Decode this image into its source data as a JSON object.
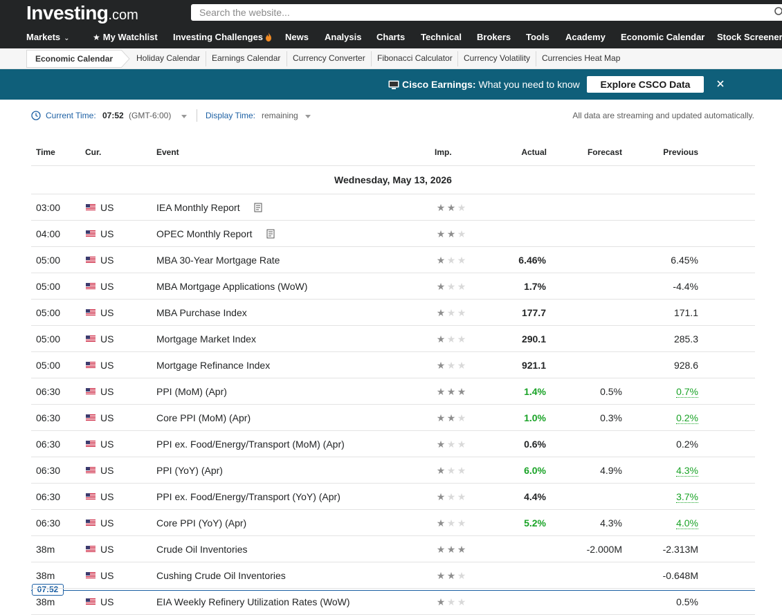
{
  "header": {
    "logo_main": "Investing",
    "logo_suffix": ".com",
    "search_placeholder": "Search the website...",
    "nav": [
      {
        "label": "Markets"
      },
      {
        "label": "My Watchlist"
      },
      {
        "label": "Investing Challenges"
      },
      {
        "label": "News"
      },
      {
        "label": "Analysis"
      },
      {
        "label": "Charts"
      },
      {
        "label": "Technical"
      },
      {
        "label": "Brokers"
      },
      {
        "label": "Tools"
      },
      {
        "label": "Academy"
      },
      {
        "label": "Economic Calendar"
      },
      {
        "label": "Stock Screener"
      }
    ]
  },
  "subnav": [
    {
      "label": "Economic Calendar"
    },
    {
      "label": "Holiday Calendar"
    },
    {
      "label": "Earnings Calendar"
    },
    {
      "label": "Currency Converter"
    },
    {
      "label": "Fibonacci Calculator"
    },
    {
      "label": "Currency Volatility"
    },
    {
      "label": "Currencies Heat Map"
    }
  ],
  "banner": {
    "title": "Cisco Earnings:",
    "text": " What you need to know",
    "button": "Explore CSCO Data"
  },
  "status": {
    "current_time_label": "Current Time:",
    "current_time": "07:52",
    "gmt": "(GMT-6:00)",
    "display_time_label": "Display Time:",
    "display_time": "remaining",
    "note": "All data are streaming and updated automatically."
  },
  "table": {
    "columns": {
      "time": "Time",
      "cur": "Cur.",
      "event": "Event",
      "imp": "Imp.",
      "actual": "Actual",
      "forecast": "Forecast",
      "previous": "Previous"
    },
    "date": "Wednesday, May 13, 2026",
    "now_badge": "07:52",
    "rows": [
      {
        "time": "03:00",
        "cur": "US",
        "event": "IEA Monthly Report",
        "imp": 2,
        "actual": "",
        "forecast": "",
        "previous": ""
      },
      {
        "time": "04:00",
        "cur": "US",
        "event": "OPEC Monthly Report",
        "imp": 2,
        "actual": "",
        "forecast": "",
        "previous": ""
      },
      {
        "time": "05:00",
        "cur": "US",
        "event": "MBA 30-Year Mortgage Rate",
        "imp": 1,
        "actual": "6.46%",
        "forecast": "",
        "previous": "6.45%"
      },
      {
        "time": "05:00",
        "cur": "US",
        "event": "MBA Mortgage Applications (WoW)",
        "imp": 1,
        "actual": "1.7%",
        "forecast": "",
        "previous": "-4.4%"
      },
      {
        "time": "05:00",
        "cur": "US",
        "event": "MBA Purchase Index",
        "imp": 1,
        "actual": "177.7",
        "forecast": "",
        "previous": "171.1"
      },
      {
        "time": "05:00",
        "cur": "US",
        "event": "Mortgage Market Index",
        "imp": 1,
        "actual": "290.1",
        "forecast": "",
        "previous": "285.3"
      },
      {
        "time": "05:00",
        "cur": "US",
        "event": "Mortgage Refinance Index",
        "imp": 1,
        "actual": "921.1",
        "forecast": "",
        "previous": "928.6"
      },
      {
        "time": "06:30",
        "cur": "US",
        "event": "PPI (MoM) (Apr)",
        "imp": 3,
        "actual": "1.4%",
        "forecast": "0.5%",
        "previous": "0.7%"
      },
      {
        "time": "06:30",
        "cur": "US",
        "event": "Core PPI (MoM) (Apr)",
        "imp": 2,
        "actual": "1.0%",
        "forecast": "0.3%",
        "previous": "0.2%"
      },
      {
        "time": "06:30",
        "cur": "US",
        "event": "PPI ex. Food/Energy/Transport (MoM) (Apr)",
        "imp": 1,
        "actual": "0.6%",
        "forecast": "",
        "previous": "0.2%"
      },
      {
        "time": "06:30",
        "cur": "US",
        "event": "PPI (YoY) (Apr)",
        "imp": 1,
        "actual": "6.0%",
        "forecast": "4.9%",
        "previous": "4.3%"
      },
      {
        "time": "06:30",
        "cur": "US",
        "event": "PPI ex. Food/Energy/Transport (YoY) (Apr)",
        "imp": 1,
        "actual": "4.4%",
        "forecast": "",
        "previous": "3.7%"
      },
      {
        "time": "06:30",
        "cur": "US",
        "event": "Core PPI (YoY) (Apr)",
        "imp": 1,
        "actual": "5.2%",
        "forecast": "4.3%",
        "previous": "4.0%"
      },
      {
        "time": "38m",
        "cur": "US",
        "event": "Crude Oil Inventories",
        "imp": 3,
        "actual": "",
        "forecast": "-2.000M",
        "previous": "-2.313M"
      },
      {
        "time": "38m",
        "cur": "US",
        "event": "Cushing Crude Oil Inventories",
        "imp": 2,
        "actual": "",
        "forecast": "",
        "previous": "-0.648M"
      },
      {
        "time": "38m",
        "cur": "US",
        "event": "EIA Weekly Refinery Utilization Rates (WoW)",
        "imp": 1,
        "actual": "",
        "forecast": "",
        "previous": "0.5%"
      }
    ]
  },
  "colors": {
    "header_bg": "#232526",
    "banner_bg": "#0f5f7a",
    "link_blue": "#1b5fa3",
    "positive_green": "#1aa327"
  }
}
